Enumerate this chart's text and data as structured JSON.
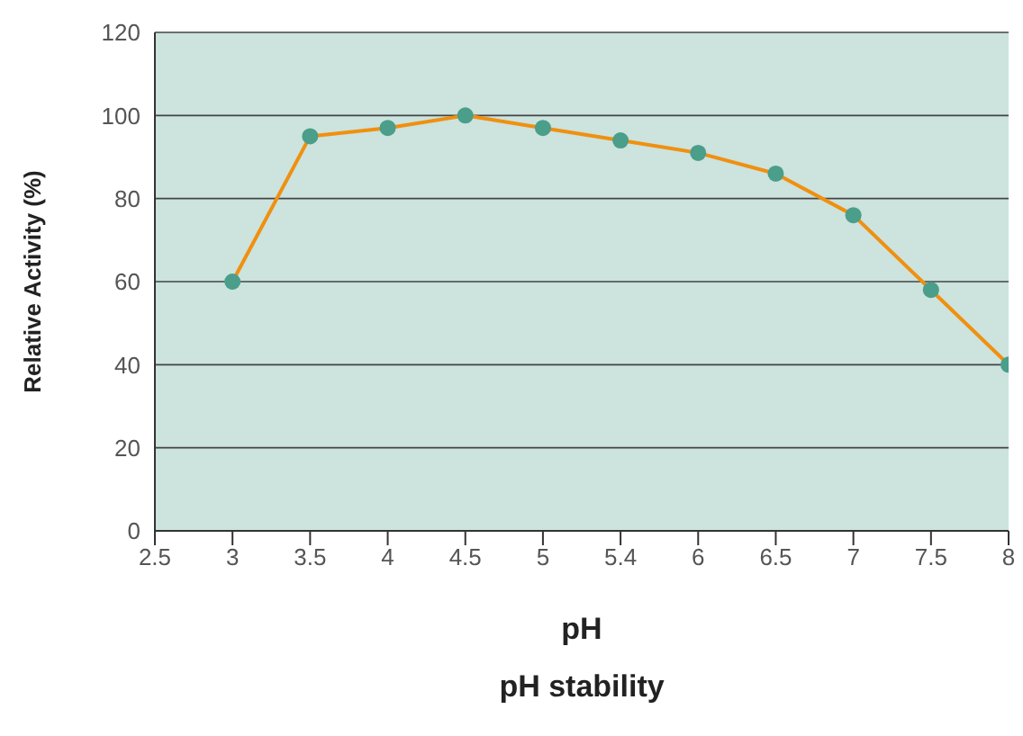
{
  "chart_data": {
    "type": "line",
    "title": "pH stability",
    "xlabel": "pH",
    "ylabel": "Relative Activity (%)",
    "categories": [
      "2.5",
      "3",
      "3.5",
      "4",
      "4.5",
      "5",
      "5.4",
      "6",
      "6.5",
      "7",
      "7.5",
      "8"
    ],
    "series": [
      {
        "color": "#f0900f",
        "values": [
          null,
          60,
          95,
          97,
          100,
          97,
          94,
          91,
          86,
          76,
          58,
          40
        ]
      }
    ],
    "ylim": [
      0,
      120
    ],
    "yticks": [
      0,
      20,
      40,
      60,
      80,
      100,
      120
    ],
    "grid": "y",
    "marker": "circle"
  }
}
